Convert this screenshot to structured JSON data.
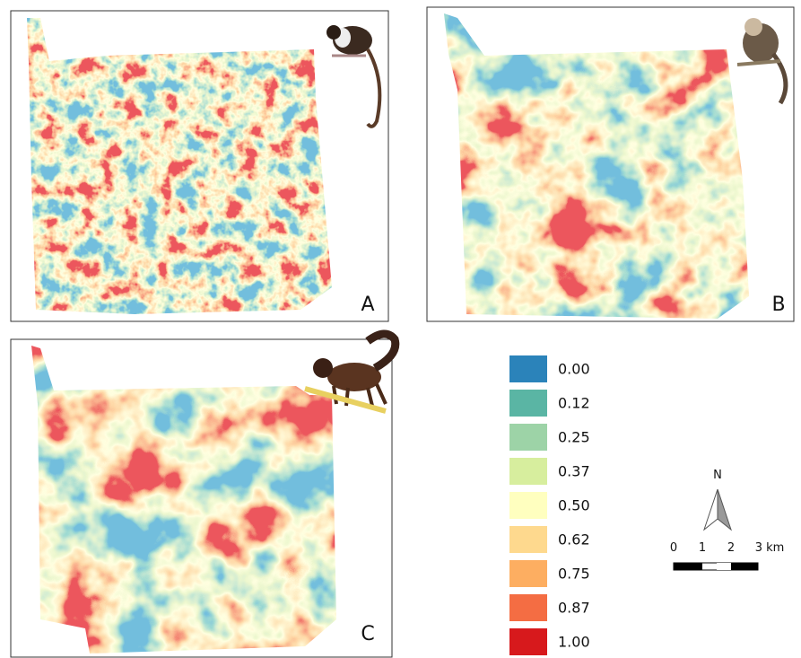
{
  "panels": [
    {
      "label": "A"
    },
    {
      "label": "B"
    },
    {
      "label": "C"
    }
  ],
  "legend": {
    "items": [
      {
        "label": "0.00",
        "color": "#2b83ba"
      },
      {
        "label": "0.12",
        "color": "#5ab5a4"
      },
      {
        "label": "0.25",
        "color": "#9dd3a7"
      },
      {
        "label": "0.37",
        "color": "#d7ee9e"
      },
      {
        "label": "0.50",
        "color": "#ffffbf"
      },
      {
        "label": "0.62",
        "color": "#fed98e"
      },
      {
        "label": "0.75",
        "color": "#fdae61"
      },
      {
        "label": "0.87",
        "color": "#f46d43"
      },
      {
        "label": "1.00",
        "color": "#d7191c"
      }
    ]
  },
  "scale": {
    "north": "N",
    "ticks": [
      "0",
      "1",
      "2",
      "3 km"
    ]
  }
}
